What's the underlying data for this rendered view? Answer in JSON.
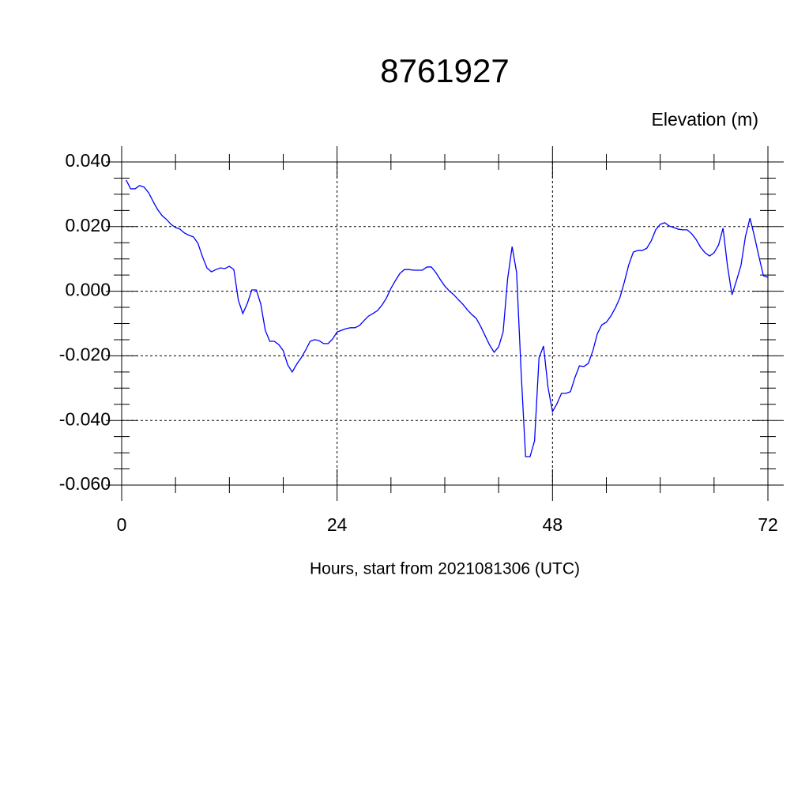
{
  "chart_data": {
    "type": "line",
    "title": "8761927",
    "subtitle": "Elevation (m)",
    "x_label": "Hours, start from 2021081306 (UTC)",
    "xlim": [
      0,
      72
    ],
    "ylim": [
      -0.06,
      0.04
    ],
    "xticks": [
      0,
      24,
      48,
      72
    ],
    "xminorticks": [
      6,
      12,
      18,
      30,
      36,
      42,
      54,
      60,
      66
    ],
    "yticks": [
      {
        "value": -0.06,
        "label": "-0.060"
      },
      {
        "value": -0.04,
        "label": "-0.040"
      },
      {
        "value": -0.02,
        "label": "-0.020"
      },
      {
        "value": 0,
        "label": "0.000"
      },
      {
        "value": 0.02,
        "label": "0.020"
      },
      {
        "value": 0.04,
        "label": "0.040"
      }
    ],
    "yminorticks": [
      -0.055,
      -0.05,
      -0.045,
      -0.035,
      -0.03,
      -0.025,
      -0.015,
      -0.01,
      -0.005,
      0.005,
      0.01,
      0.015,
      0.025,
      0.03,
      0.035
    ],
    "grid": true,
    "x": [
      0.5,
      1,
      1.5,
      2,
      2.5,
      3,
      3.5,
      4,
      4.5,
      5,
      5.5,
      6,
      6.5,
      7,
      7.5,
      8,
      8.5,
      9,
      9.5,
      10,
      10.5,
      11,
      11.5,
      12,
      12.5,
      13,
      13.5,
      14,
      14.5,
      15,
      15.5,
      16,
      16.5,
      17,
      17.5,
      18,
      18.5,
      19,
      19.5,
      20,
      20.5,
      21,
      21.5,
      22,
      22.5,
      23,
      23.5,
      24,
      24.5,
      25,
      25.5,
      26,
      26.5,
      27,
      27.5,
      28,
      28.5,
      29,
      29.5,
      30,
      30.5,
      31,
      31.5,
      32,
      32.5,
      33,
      33.5,
      34,
      34.5,
      35,
      35.5,
      36,
      36.5,
      37,
      37.5,
      38,
      38.5,
      39,
      39.5,
      40,
      40.5,
      41,
      41.5,
      42,
      42.5,
      43,
      43.5,
      44,
      44.5,
      45,
      45.5,
      46,
      46.5,
      47,
      47.5,
      48,
      48.5,
      49,
      49.5,
      50,
      50.5,
      51,
      51.5,
      52,
      52.5,
      53,
      53.5,
      54,
      54.5,
      55,
      55.5,
      56,
      56.5,
      57,
      57.5,
      58,
      58.5,
      59,
      59.5,
      60,
      60.5,
      61,
      61.5,
      62,
      62.5,
      63,
      63.5,
      64,
      64.5,
      65,
      65.5,
      66,
      66.5,
      67,
      67.5,
      68,
      68.5,
      69,
      69.5,
      70,
      70.5,
      71,
      71.5,
      72
    ],
    "series": [
      {
        "color": "#0000ff",
        "values": [
          0.0344,
          0.0317,
          0.0317,
          0.0327,
          0.0322,
          0.0305,
          0.0278,
          0.0253,
          0.0234,
          0.0222,
          0.0207,
          0.0197,
          0.0192,
          0.018,
          0.0173,
          0.0168,
          0.0148,
          0.0107,
          0.0072,
          0.006,
          0.0067,
          0.0072,
          0.007,
          0.0077,
          0.0067,
          -0.0028,
          -0.0069,
          -0.0038,
          0.0004,
          0.0004,
          -0.004,
          -0.0121,
          -0.0155,
          -0.0155,
          -0.0165,
          -0.0184,
          -0.0228,
          -0.025,
          -0.0226,
          -0.0206,
          -0.0182,
          -0.0155,
          -0.015,
          -0.0153,
          -0.0162,
          -0.0162,
          -0.0148,
          -0.0126,
          -0.0121,
          -0.0116,
          -0.0113,
          -0.0113,
          -0.0106,
          -0.0091,
          -0.0077,
          -0.0069,
          -0.006,
          -0.0043,
          -0.0021,
          0.0009,
          0.0033,
          0.0055,
          0.0067,
          0.0067,
          0.0065,
          0.0065,
          0.0065,
          0.0075,
          0.0075,
          0.0058,
          0.0036,
          0.0016,
          0.0001,
          -0.0011,
          -0.0026,
          -0.004,
          -0.0057,
          -0.0072,
          -0.0084,
          -0.0109,
          -0.0138,
          -0.0167,
          -0.0189,
          -0.0172,
          -0.0126,
          0.0038,
          0.0138,
          0.0058,
          -0.0248,
          -0.0512,
          -0.0512,
          -0.0463,
          -0.0206,
          -0.017,
          -0.0297,
          -0.0373,
          -0.0348,
          -0.0316,
          -0.0316,
          -0.0311,
          -0.0267,
          -0.0231,
          -0.0233,
          -0.0223,
          -0.0184,
          -0.0131,
          -0.0104,
          -0.0096,
          -0.0077,
          -0.0052,
          -0.0021,
          0.0028,
          0.0082,
          0.0121,
          0.0126,
          0.0126,
          0.0133,
          0.0156,
          0.019,
          0.0207,
          0.0212,
          0.0202,
          0.0197,
          0.0192,
          0.019,
          0.019,
          0.0178,
          0.016,
          0.0136,
          0.0119,
          0.0109,
          0.0119,
          0.0143,
          0.0195,
          0.0077,
          -0.0011,
          0.0033,
          0.008,
          0.017,
          0.0226,
          0.017,
          0.0107,
          0.0048,
          0.0043
        ]
      }
    ]
  }
}
